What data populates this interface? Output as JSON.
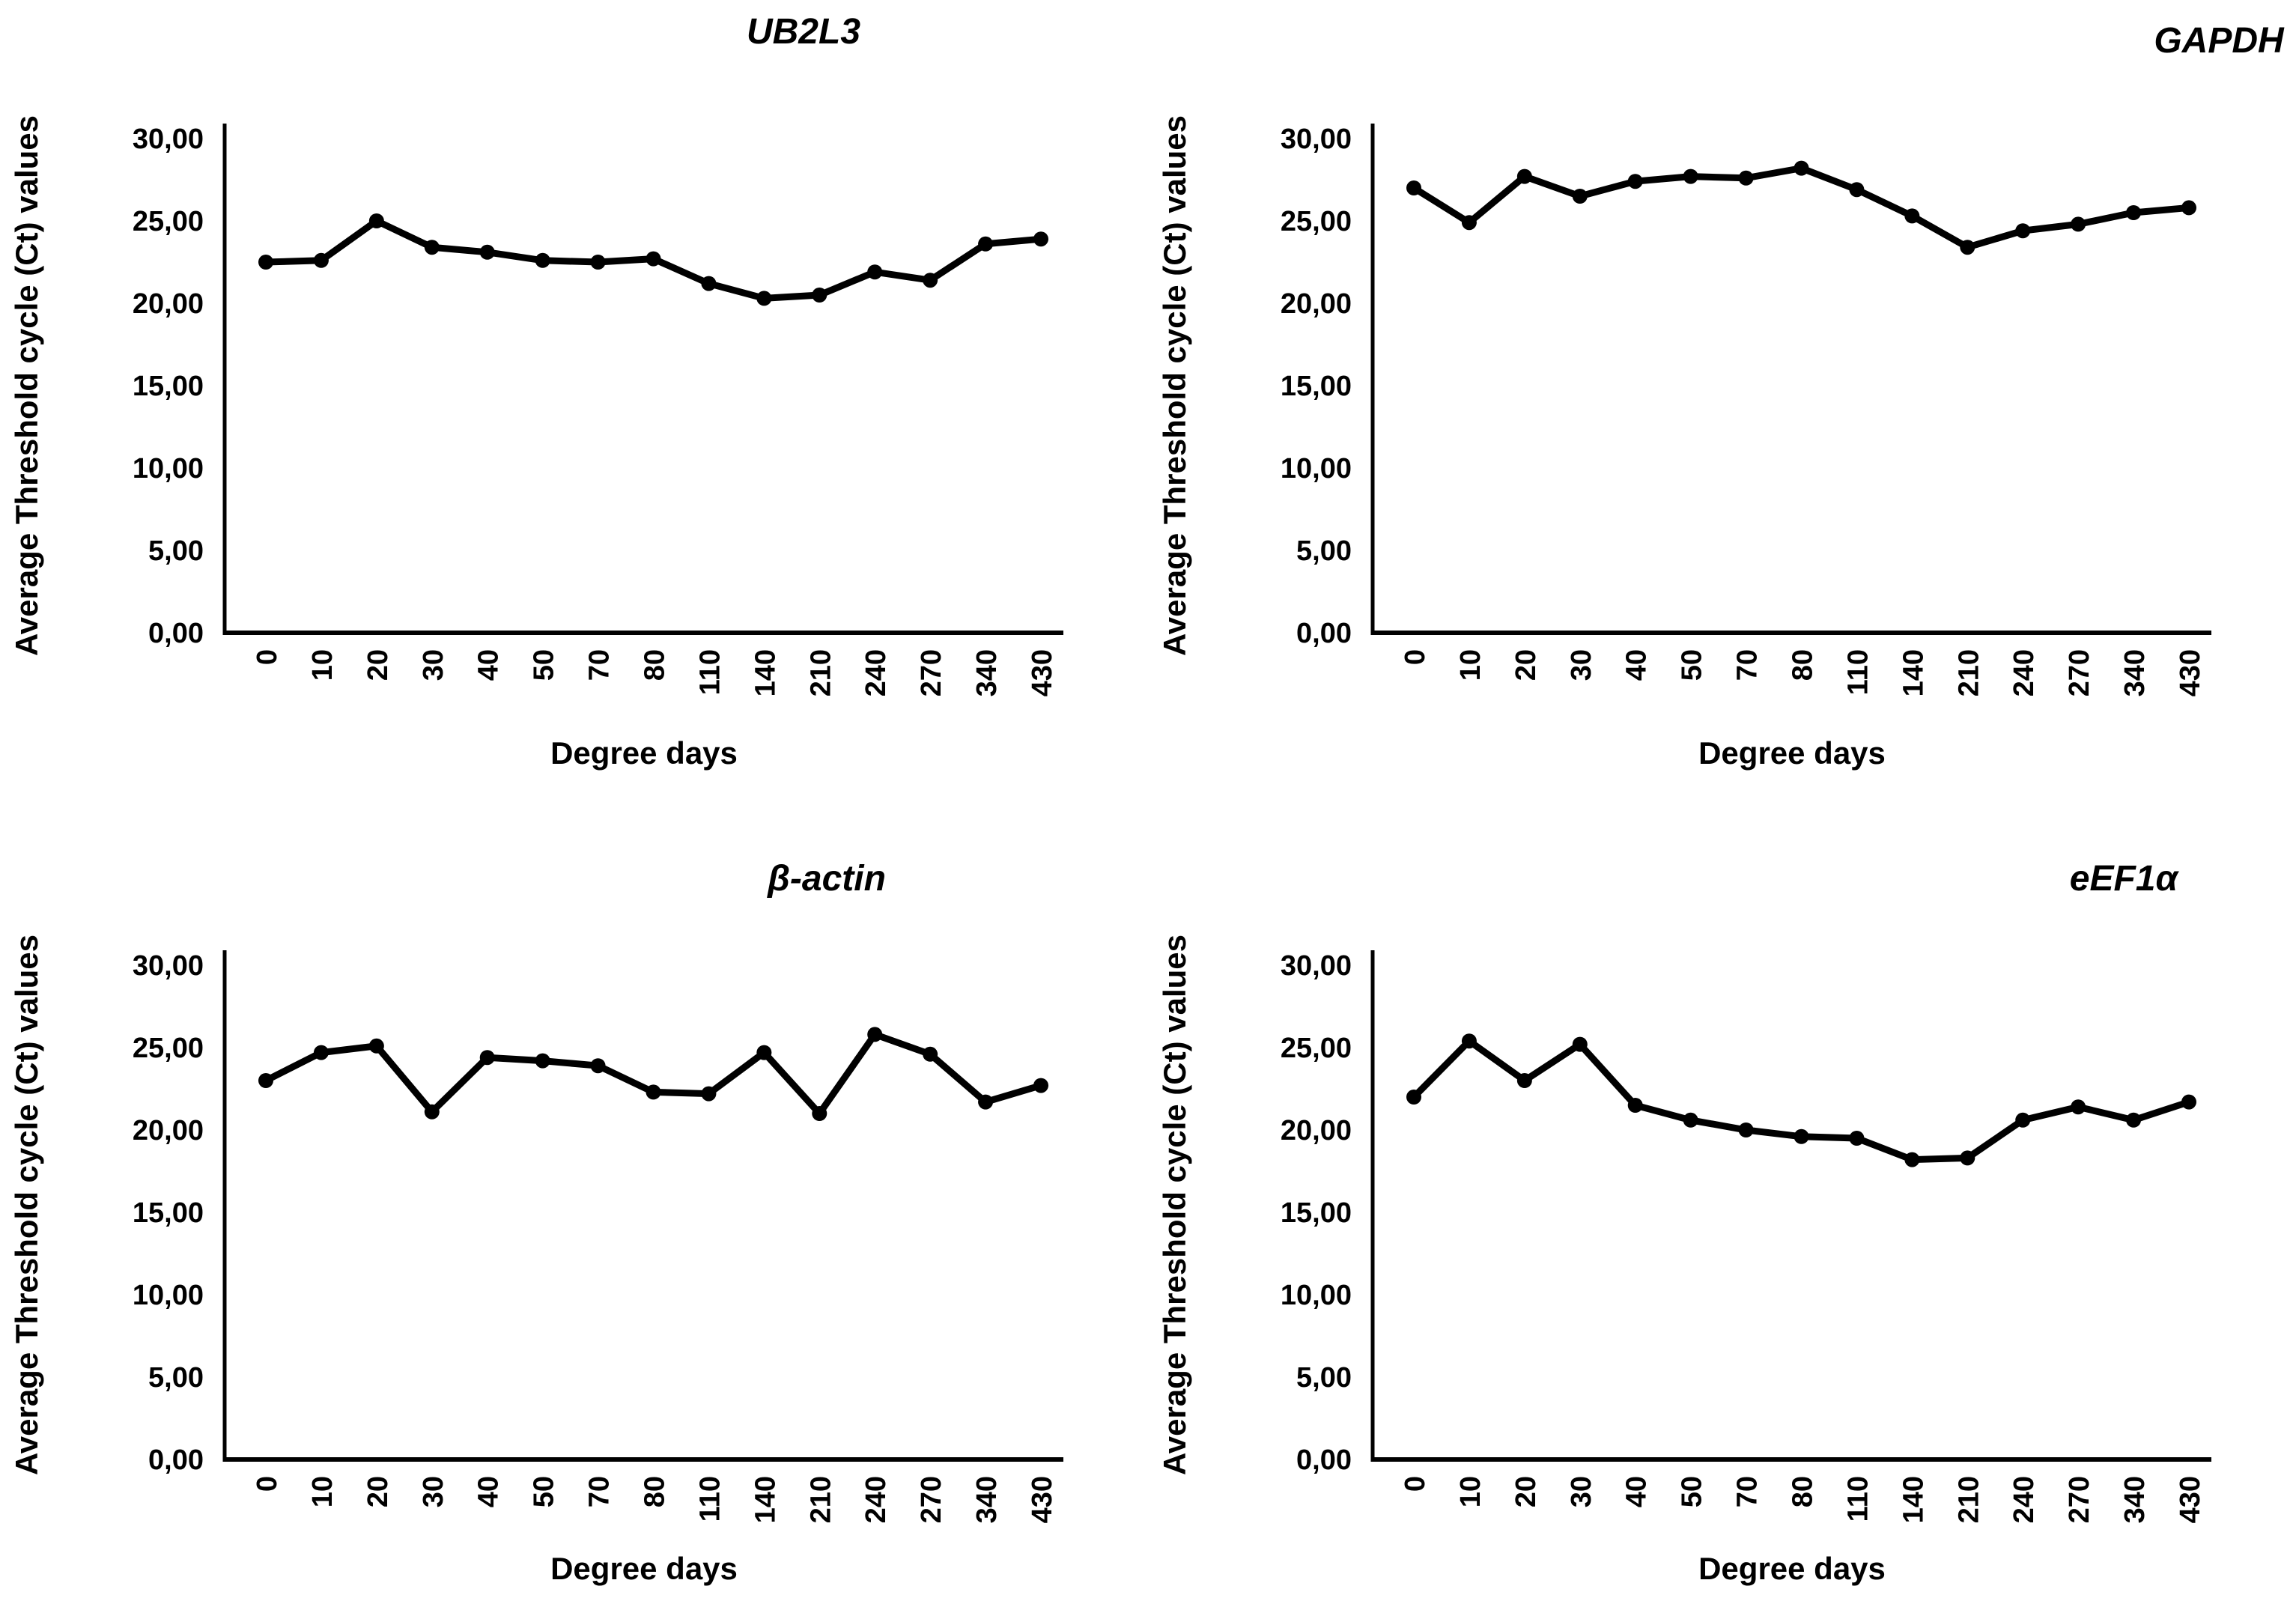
{
  "figure": {
    "background": "#ffffff",
    "text_color": "#000000",
    "series_color": "#000000"
  },
  "chart_data": [
    {
      "type": "line",
      "title": "UB2L3",
      "xlabel": "Degree days",
      "ylabel": "Average Threshold cycle (Ct) values",
      "categories": [
        "0",
        "10",
        "20",
        "30",
        "40",
        "50",
        "70",
        "80",
        "110",
        "140",
        "210",
        "240",
        "270",
        "340",
        "430"
      ],
      "values": [
        22.5,
        22.6,
        25.0,
        23.4,
        23.1,
        22.6,
        22.5,
        22.7,
        21.2,
        20.3,
        20.5,
        21.9,
        21.4,
        23.6,
        23.9
      ],
      "ylim": [
        0,
        30
      ],
      "ytick_labels": [
        "0,00",
        "5,00",
        "10,00",
        "15,00",
        "20,00",
        "25,00",
        "30,00"
      ],
      "grid": false,
      "legend": null,
      "marker": "circle",
      "line_color": "#000000"
    },
    {
      "type": "line",
      "title": "GAPDH",
      "xlabel": "Degree days",
      "ylabel": "Average Threshold cycle (Ct) values",
      "categories": [
        "0",
        "10",
        "20",
        "30",
        "40",
        "50",
        "70",
        "80",
        "110",
        "140",
        "210",
        "240",
        "270",
        "340",
        "430"
      ],
      "values": [
        27.0,
        24.9,
        27.7,
        26.5,
        27.4,
        27.7,
        27.6,
        28.2,
        26.9,
        25.3,
        23.4,
        24.4,
        24.8,
        25.5,
        25.8
      ],
      "ylim": [
        0,
        30
      ],
      "ytick_labels": [
        "0,00",
        "5,00",
        "10,00",
        "15,00",
        "20,00",
        "25,00",
        "30,00"
      ],
      "grid": false,
      "legend": null,
      "marker": "circle",
      "line_color": "#000000"
    },
    {
      "type": "line",
      "title": "β-actin",
      "xlabel": "Degree days",
      "ylabel": "Average Threshold cycle (Ct) values",
      "categories": [
        "0",
        "10",
        "20",
        "30",
        "40",
        "50",
        "70",
        "80",
        "110",
        "140",
        "210",
        "240",
        "270",
        "340",
        "430"
      ],
      "values": [
        23.0,
        24.7,
        25.1,
        21.1,
        24.4,
        24.2,
        23.9,
        22.3,
        22.2,
        24.7,
        21.0,
        25.8,
        24.6,
        21.7,
        22.7
      ],
      "ylim": [
        0,
        30
      ],
      "ytick_labels": [
        "0,00",
        "5,00",
        "10,00",
        "15,00",
        "20,00",
        "25,00",
        "30,00"
      ],
      "grid": false,
      "legend": null,
      "marker": "circle",
      "line_color": "#000000"
    },
    {
      "type": "line",
      "title": "eEF1α",
      "xlabel": "Degree days",
      "ylabel": "Average Threshold cycle (Ct) values",
      "categories": [
        "0",
        "10",
        "20",
        "30",
        "40",
        "50",
        "70",
        "80",
        "110",
        "140",
        "210",
        "240",
        "270",
        "340",
        "430"
      ],
      "values": [
        22.0,
        25.4,
        23.0,
        25.2,
        21.5,
        20.6,
        20.0,
        19.6,
        19.5,
        18.2,
        18.3,
        20.6,
        21.4,
        20.6,
        21.7
      ],
      "ylim": [
        0,
        30
      ],
      "ytick_labels": [
        "0,00",
        "5,00",
        "10,00",
        "15,00",
        "20,00",
        "25,00",
        "30,00"
      ],
      "grid": false,
      "legend": null,
      "marker": "circle",
      "line_color": "#000000"
    }
  ]
}
